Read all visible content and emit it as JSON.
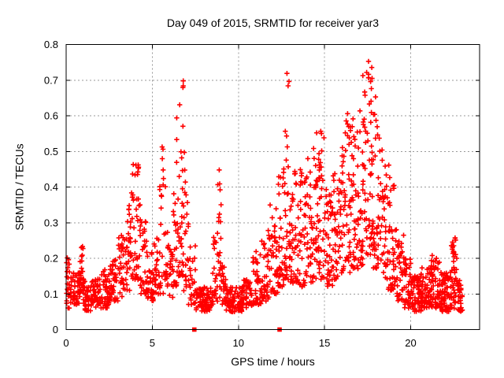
{
  "chart_data": {
    "type": "scatter",
    "title": "Day 049 of 2015, SRMTID for receiver yar3",
    "xlabel": "GPS time / hours",
    "ylabel": "SRMTID / TECUs",
    "xlim": [
      0,
      24
    ],
    "ylim": [
      0,
      0.8
    ],
    "xticks": {
      "values": [
        0,
        5,
        10,
        15,
        20
      ],
      "labels": [
        "0",
        "5",
        "10",
        "15",
        "20"
      ]
    },
    "yticks": {
      "values": [
        0,
        0.1,
        0.2,
        0.3,
        0.4,
        0.5,
        0.6,
        0.7,
        0.8
      ],
      "labels": [
        "0",
        "0.1",
        "0.2",
        "0.3",
        "0.4",
        "0.5",
        "0.6",
        "0.7",
        "0.8"
      ]
    },
    "grid": true,
    "legend": "none",
    "marker": {
      "shape": "plus",
      "color": "#ff0000",
      "size": 6.4,
      "stroke_width": 1.6
    },
    "colors": {
      "points": "#ff0000",
      "grid": "#999999",
      "border": "#000000",
      "text": "#000000",
      "background": "#ffffff"
    },
    "zero_value_squares_x": [
      7.44,
      12.39
    ],
    "seed": 49,
    "envelope_bins": [
      [
        0.0,
        0.3,
        0.06,
        0.23,
        28,
        1.6
      ],
      [
        0.3,
        0.8,
        0.07,
        0.16,
        40,
        1.2
      ],
      [
        0.8,
        1.0,
        0.1,
        0.24,
        22,
        1.2
      ],
      [
        1.0,
        1.5,
        0.05,
        0.14,
        42,
        1.2
      ],
      [
        1.5,
        2.0,
        0.06,
        0.15,
        42,
        1.2
      ],
      [
        2.0,
        2.5,
        0.06,
        0.17,
        42,
        1.2
      ],
      [
        2.5,
        3.0,
        0.08,
        0.21,
        40,
        1.3
      ],
      [
        3.0,
        3.4,
        0.09,
        0.27,
        32,
        1.4
      ],
      [
        3.4,
        3.8,
        0.11,
        0.36,
        32,
        1.4
      ],
      [
        3.8,
        4.3,
        0.14,
        0.47,
        45,
        1.5
      ],
      [
        4.3,
        4.7,
        0.1,
        0.31,
        30,
        1.5
      ],
      [
        4.7,
        5.1,
        0.08,
        0.22,
        30,
        1.3
      ],
      [
        5.1,
        5.4,
        0.1,
        0.26,
        24,
        1.4
      ],
      [
        5.4,
        5.8,
        0.1,
        0.52,
        30,
        2.0
      ],
      [
        5.8,
        6.2,
        0.09,
        0.32,
        28,
        1.5
      ],
      [
        6.2,
        6.5,
        0.12,
        0.6,
        26,
        1.7
      ],
      [
        6.5,
        6.8,
        0.15,
        0.7,
        32,
        1.5
      ],
      [
        6.8,
        7.1,
        0.1,
        0.5,
        26,
        1.7
      ],
      [
        7.1,
        7.5,
        0.07,
        0.24,
        26,
        1.5
      ],
      [
        7.5,
        8.5,
        0.05,
        0.12,
        80,
        1.1
      ],
      [
        8.5,
        8.8,
        0.07,
        0.28,
        22,
        1.6
      ],
      [
        8.8,
        9.0,
        0.09,
        0.47,
        20,
        1.7
      ],
      [
        9.0,
        9.3,
        0.07,
        0.2,
        22,
        1.5
      ],
      [
        9.3,
        10.2,
        0.05,
        0.12,
        70,
        1.1
      ],
      [
        10.2,
        10.8,
        0.06,
        0.14,
        48,
        1.2
      ],
      [
        10.8,
        11.3,
        0.07,
        0.22,
        40,
        1.4
      ],
      [
        11.3,
        11.8,
        0.08,
        0.28,
        40,
        1.4
      ],
      [
        11.8,
        12.3,
        0.1,
        0.35,
        42,
        1.5
      ],
      [
        12.3,
        12.7,
        0.12,
        0.5,
        36,
        1.7
      ],
      [
        12.7,
        13.0,
        0.14,
        0.72,
        34,
        1.7
      ],
      [
        13.0,
        13.5,
        0.13,
        0.45,
        44,
        1.5
      ],
      [
        13.5,
        14.0,
        0.12,
        0.46,
        44,
        1.5
      ],
      [
        14.0,
        14.5,
        0.13,
        0.52,
        44,
        1.6
      ],
      [
        14.5,
        15.0,
        0.14,
        0.56,
        46,
        1.6
      ],
      [
        15.0,
        15.5,
        0.12,
        0.4,
        44,
        1.4
      ],
      [
        15.5,
        16.0,
        0.14,
        0.45,
        44,
        1.4
      ],
      [
        16.0,
        16.5,
        0.16,
        0.63,
        48,
        1.5
      ],
      [
        16.5,
        17.0,
        0.17,
        0.6,
        48,
        1.4
      ],
      [
        17.0,
        17.4,
        0.18,
        0.72,
        40,
        1.5
      ],
      [
        17.4,
        17.8,
        0.2,
        0.785,
        42,
        1.4
      ],
      [
        17.8,
        18.2,
        0.17,
        0.68,
        40,
        1.5
      ],
      [
        18.2,
        18.7,
        0.14,
        0.52,
        40,
        1.4
      ],
      [
        18.7,
        19.1,
        0.11,
        0.5,
        36,
        1.5
      ],
      [
        19.1,
        19.6,
        0.08,
        0.3,
        40,
        1.4
      ],
      [
        19.6,
        20.0,
        0.06,
        0.2,
        40,
        1.3
      ],
      [
        20.0,
        20.6,
        0.05,
        0.15,
        60,
        1.1
      ],
      [
        20.6,
        21.2,
        0.06,
        0.18,
        60,
        1.2
      ],
      [
        21.2,
        21.8,
        0.06,
        0.21,
        60,
        1.3
      ],
      [
        21.8,
        22.3,
        0.05,
        0.16,
        55,
        1.2
      ],
      [
        22.3,
        22.7,
        0.06,
        0.26,
        45,
        1.5
      ],
      [
        22.7,
        23.0,
        0.05,
        0.14,
        30,
        1.2
      ]
    ]
  }
}
